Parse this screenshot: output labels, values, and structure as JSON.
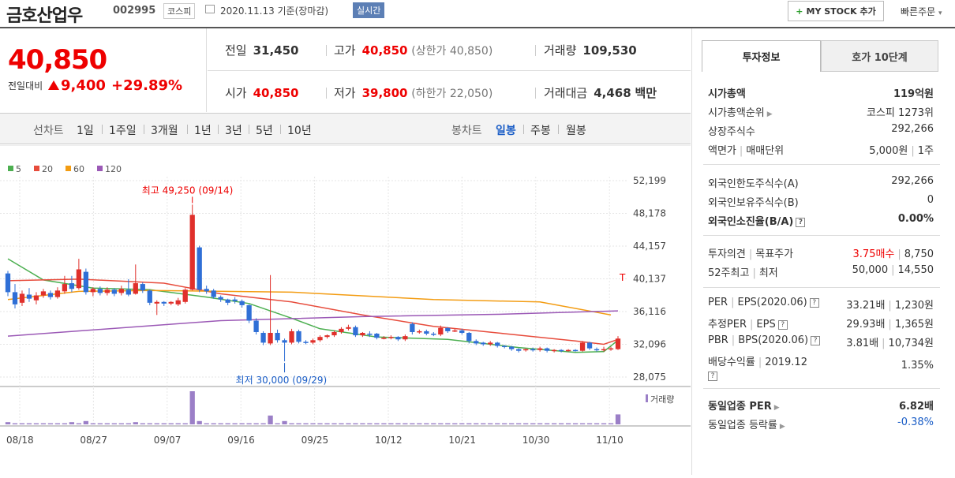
{
  "header": {
    "name": "금호산업우",
    "code": "002995",
    "market": "코스피",
    "date": "2020.11.13 기준(장마감)",
    "realtime": "실시간",
    "mystock": "MY STOCK 추가",
    "fast_order": "빠른주문"
  },
  "price": {
    "current": "40,850",
    "compare_label": "전일대비",
    "change": "9,400",
    "change_pct": "+29.89%"
  },
  "info": {
    "prev_label": "전일",
    "prev": "31,450",
    "high_label": "고가",
    "high": "40,850",
    "upper_limit": "(상한가 40,850)",
    "volume_label": "거래량",
    "volume": "109,530",
    "open_label": "시가",
    "open": "40,850",
    "low_label": "저가",
    "low": "39,800",
    "lower_limit": "(하한가 22,050)",
    "amount_label": "거래대금",
    "amount": "4,468",
    "amount_unit": "백만"
  },
  "toolbar": {
    "line_label": "선차트",
    "line_ranges": [
      "1일",
      "1주일",
      "3개월",
      "1년",
      "3년",
      "5년",
      "10년"
    ],
    "candle_label": "봉차트",
    "candle_ranges": [
      "일봉",
      "주봉",
      "월봉"
    ],
    "active_candle": "일봉"
  },
  "side": {
    "tab_active": "투자정보",
    "tab_other": "호가 10단계",
    "mktcap_label": "시가총액",
    "mktcap": "119억원",
    "rank_label": "시가총액순위",
    "rank": "코스피 1273위",
    "shares_label": "상장주식수",
    "shares": "292,266",
    "face_label": "액면가",
    "unit_label": "매매단위",
    "face": "5,000원",
    "unit": "1주",
    "foreign_limit_label": "외국인한도주식수(A)",
    "foreign_limit": "292,266",
    "foreign_hold_label": "외국인보유주식수(B)",
    "foreign_hold": "0",
    "foreign_rate_label": "외국인소진율(B/A)",
    "foreign_rate": "0.00%",
    "opinion_label": "투자의견",
    "target_label": "목표주가",
    "opinion": "3.75매수",
    "target": "8,750",
    "w52_label": "52주최고",
    "w52_low_label": "최저",
    "w52_high": "50,000",
    "w52_low": "14,550",
    "per_label": "PER",
    "eps_label": "EPS(2020.06)",
    "per": "33.21배",
    "eps": "1,230원",
    "est_per_label": "추정PER",
    "est_eps_label": "EPS",
    "est_per": "29.93배",
    "est_eps": "1,365원",
    "pbr_label": "PBR",
    "bps_label": "BPS(2020.06)",
    "pbr": "3.81배",
    "bps": "10,734원",
    "div_label": "배당수익률",
    "div_year": "2019.12",
    "div": "1.35%",
    "ind_per_label": "동일업종 PER",
    "ind_per": "6.82배",
    "ind_rate_label": "동일업종 등락률",
    "ind_rate": "-0.38%",
    "q_mark": "?"
  },
  "chart_data": {
    "type": "candlestick",
    "ma_legend": [
      {
        "name": "5",
        "color": "#4caf50"
      },
      {
        "name": "20",
        "color": "#e74c3c"
      },
      {
        "name": "60",
        "color": "#f39c12"
      },
      {
        "name": "120",
        "color": "#9b59b6"
      }
    ],
    "y_ticks": [
      "52,199",
      "48,178",
      "44,157",
      "40,137",
      "36,116",
      "32,096",
      "28,075"
    ],
    "x_ticks": [
      "08/18",
      "08/27",
      "09/07",
      "09/16",
      "09/25",
      "10/12",
      "10/21",
      "10/30",
      "11/10"
    ],
    "ylim": [
      28075,
      52199
    ],
    "max_label": "최고 49,250 (09/14)",
    "min_label": "최저 30,000 (09/29)",
    "volume_label": "거래량",
    "upper_mark": "T",
    "candles": [
      [
        40800,
        38500,
        41100,
        38000
      ],
      [
        38500,
        37000,
        39500,
        36500
      ],
      [
        37200,
        38300,
        38700,
        36800
      ],
      [
        38200,
        37700,
        39000,
        37300
      ],
      [
        37500,
        38100,
        38500,
        37000
      ],
      [
        38100,
        38600,
        38900,
        37800
      ],
      [
        38400,
        37900,
        38700,
        37600
      ],
      [
        37900,
        38700,
        39100,
        37700
      ],
      [
        38600,
        39500,
        40500,
        38300
      ],
      [
        39600,
        38900,
        40500,
        38500
      ],
      [
        39000,
        41300,
        42600,
        38800
      ],
      [
        41000,
        38500,
        41400,
        38200
      ],
      [
        38500,
        38900,
        39100,
        38000
      ],
      [
        38900,
        38400,
        39200,
        38100
      ],
      [
        38400,
        38800,
        39100,
        38100
      ],
      [
        38800,
        38300,
        39000,
        38000
      ],
      [
        38400,
        38900,
        39300,
        38100
      ],
      [
        38800,
        38200,
        40100,
        38000
      ],
      [
        38300,
        39600,
        41900,
        38200
      ],
      [
        39500,
        38700,
        39700,
        38400
      ],
      [
        38700,
        37200,
        38800,
        36900
      ],
      [
        37100,
        37300,
        37500,
        35700
      ],
      [
        37300,
        37100,
        37400,
        36800
      ],
      [
        37100,
        37300,
        37400,
        36900
      ],
      [
        37000,
        37500,
        37800,
        36800
      ],
      [
        37300,
        38800,
        39000,
        37100
      ],
      [
        38800,
        48000,
        49250,
        38700
      ],
      [
        44000,
        38800,
        44200,
        38500
      ],
      [
        38900,
        38600,
        39300,
        38300
      ],
      [
        38700,
        37900,
        38900,
        37700
      ],
      [
        37900,
        37600,
        38100,
        37300
      ],
      [
        37600,
        37200,
        37700,
        36900
      ],
      [
        37600,
        37400,
        37900,
        37100
      ],
      [
        37400,
        36900,
        37600,
        36600
      ],
      [
        36900,
        35000,
        37000,
        34700
      ],
      [
        35000,
        33600,
        35300,
        33300
      ],
      [
        33500,
        32300,
        33700,
        32000
      ],
      [
        32200,
        33500,
        40600,
        32000
      ],
      [
        33500,
        32600,
        33900,
        32300
      ],
      [
        32600,
        32300,
        32800,
        30000
      ],
      [
        32300,
        33700,
        34000,
        32100
      ],
      [
        33700,
        32400,
        33900,
        32200
      ],
      [
        32400,
        32300,
        32600,
        32100
      ],
      [
        32300,
        32600,
        32800,
        32100
      ],
      [
        32600,
        33000,
        33200,
        32400
      ],
      [
        33000,
        33200,
        33300,
        32800
      ],
      [
        33200,
        33600,
        33800,
        33000
      ],
      [
        33600,
        34000,
        34200,
        33400
      ],
      [
        34000,
        34200,
        34500,
        33800
      ],
      [
        34200,
        33200,
        34400,
        33000
      ],
      [
        33200,
        33500,
        33600,
        33000
      ],
      [
        33400,
        33300,
        33700,
        33000
      ],
      [
        33400,
        32900,
        33500,
        32700
      ],
      [
        32900,
        32900,
        33100,
        32700
      ],
      [
        32900,
        33000,
        33200,
        32700
      ],
      [
        33000,
        32700,
        33100,
        32500
      ],
      [
        32700,
        33100,
        33300,
        32500
      ],
      [
        34600,
        33600,
        34800,
        33300
      ],
      [
        33600,
        33700,
        33900,
        33400
      ],
      [
        33700,
        33400,
        33900,
        33200
      ],
      [
        33400,
        33300,
        33600,
        33100
      ],
      [
        33300,
        34100,
        34400,
        33100
      ],
      [
        34100,
        33700,
        34200,
        33500
      ],
      [
        33700,
        33800,
        34000,
        33600
      ],
      [
        33800,
        33500,
        34000,
        33300
      ],
      [
        33500,
        32500,
        33600,
        32200
      ],
      [
        32500,
        32200,
        32700,
        32000
      ],
      [
        32300,
        32100,
        32400,
        31900
      ],
      [
        32100,
        32300,
        32500,
        31900
      ],
      [
        32300,
        31900,
        32400,
        31700
      ],
      [
        31900,
        31800,
        32000,
        31600
      ],
      [
        31800,
        31500,
        31900,
        31300
      ],
      [
        31500,
        31300,
        31600,
        31100
      ],
      [
        31400,
        31500,
        31600,
        31200
      ],
      [
        31500,
        31400,
        31700,
        31200
      ],
      [
        31400,
        31600,
        31800,
        31200
      ],
      [
        31600,
        31300,
        31700,
        31100
      ],
      [
        31300,
        31400,
        31500,
        31100
      ],
      [
        31400,
        31300,
        31500,
        31100
      ],
      [
        31300,
        31400,
        31500,
        31200
      ],
      [
        31400,
        31300,
        31500,
        31200
      ],
      [
        31300,
        32300,
        32500,
        31200
      ],
      [
        32300,
        31600,
        32400,
        31400
      ],
      [
        31500,
        31400,
        31700,
        31200
      ],
      [
        31400,
        31500,
        31800,
        31200
      ],
      [
        31500,
        31600,
        31800,
        31300
      ],
      [
        31500,
        32800,
        33100,
        31400
      ]
    ],
    "volumes": [
      2,
      1,
      1,
      1,
      1,
      1,
      1,
      1,
      1,
      2,
      1,
      3,
      1,
      1,
      1,
      1,
      1,
      1,
      2,
      1,
      1,
      1,
      1,
      1,
      1,
      1,
      30,
      3,
      1,
      1,
      1,
      1,
      1,
      1,
      1,
      1,
      1,
      8,
      1,
      3,
      1,
      1,
      1,
      1,
      1,
      1,
      1,
      1,
      1,
      1,
      1,
      1,
      1,
      1,
      1,
      1,
      1,
      1,
      1,
      1,
      1,
      1,
      1,
      1,
      1,
      1,
      1,
      1,
      1,
      1,
      1,
      1,
      1,
      1,
      1,
      1,
      1,
      1,
      1,
      1,
      1,
      1,
      1,
      1,
      1,
      1,
      9
    ],
    "ma": {
      "5": [
        [
          0,
          42600
        ],
        [
          5,
          40000
        ],
        [
          12,
          39000
        ],
        [
          20,
          38800
        ],
        [
          28,
          37900
        ],
        [
          34,
          37100
        ],
        [
          40,
          35300
        ],
        [
          44,
          34000
        ],
        [
          52,
          33000
        ],
        [
          62,
          32700
        ],
        [
          72,
          31700
        ],
        [
          80,
          31100
        ],
        [
          84,
          31200
        ],
        [
          86,
          32600
        ]
      ],
      "20": [
        [
          0,
          39900
        ],
        [
          10,
          40100
        ],
        [
          22,
          39600
        ],
        [
          30,
          38300
        ],
        [
          40,
          37300
        ],
        [
          50,
          35700
        ],
        [
          60,
          34300
        ],
        [
          70,
          33400
        ],
        [
          80,
          32500
        ],
        [
          84,
          32100
        ],
        [
          86,
          32700
        ]
      ],
      "60": [
        [
          0,
          37600
        ],
        [
          10,
          38600
        ],
        [
          20,
          38700
        ],
        [
          40,
          38500
        ],
        [
          60,
          37600
        ],
        [
          75,
          37300
        ],
        [
          85,
          35700
        ]
      ],
      "120": [
        [
          0,
          33100
        ],
        [
          30,
          35000
        ],
        [
          50,
          35500
        ],
        [
          70,
          35800
        ],
        [
          86,
          36200
        ]
      ]
    }
  }
}
